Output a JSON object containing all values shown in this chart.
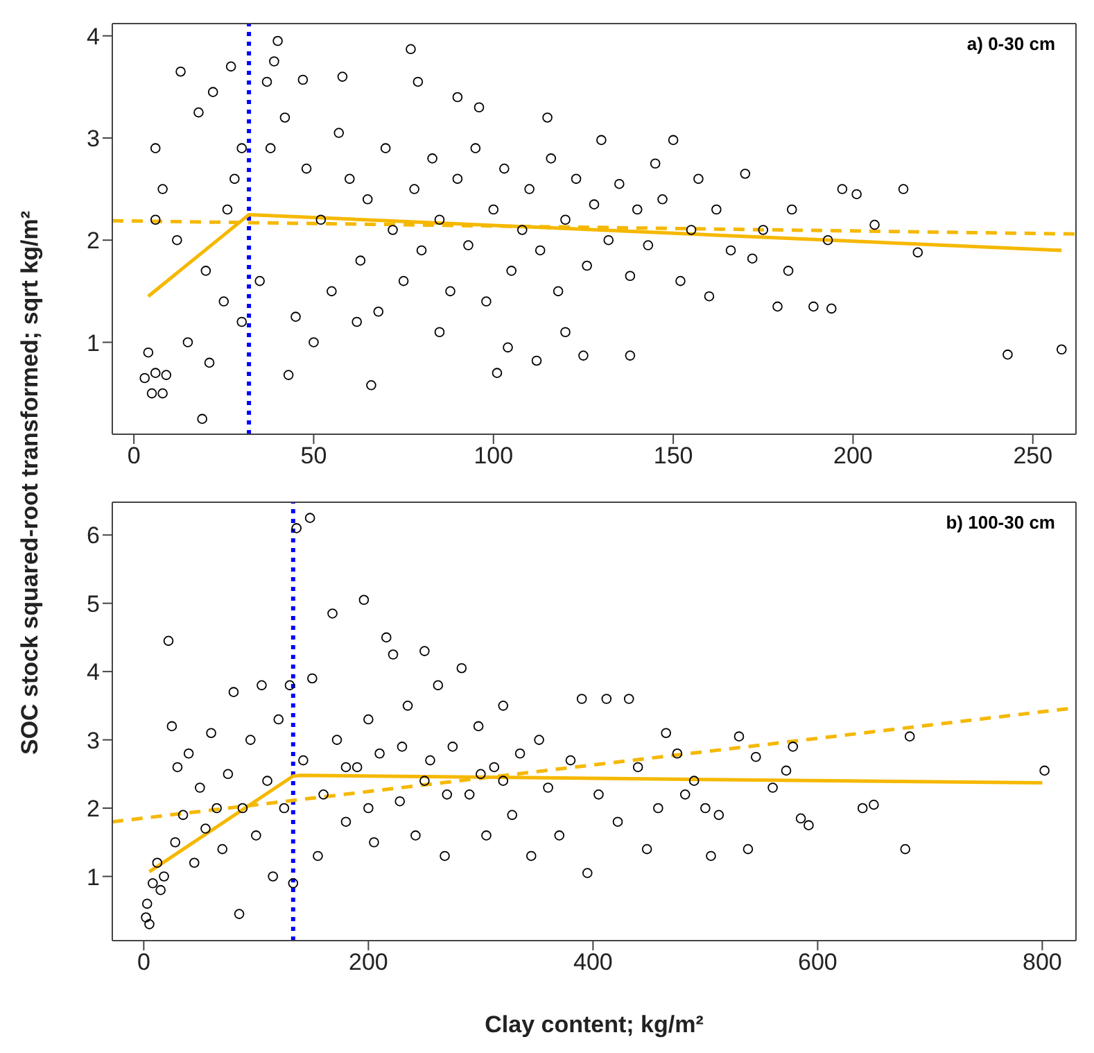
{
  "chart_data": [
    {
      "type": "scatter",
      "title": "a) 0-30 cm",
      "ylabel": "SOC stock squared-root transformed; sqrt kg/m²",
      "xlim": [
        -6,
        262
      ],
      "xticks": [
        0,
        50,
        100,
        150,
        200,
        250
      ],
      "ylim": [
        0.1,
        4.12
      ],
      "yticks": [
        1,
        2,
        3,
        4
      ],
      "ref_lines": [
        {
          "axis": "x",
          "value": 32,
          "color": "#0000ff",
          "line_style": "dotted"
        }
      ],
      "series": [
        {
          "marker": "circle",
          "color": "#000000",
          "x": [
            3,
            4,
            5,
            6,
            8,
            9,
            6,
            6,
            8,
            13,
            19,
            21,
            27,
            37,
            40,
            39,
            43,
            47,
            58,
            66,
            77,
            79,
            90,
            96,
            101,
            112,
            115,
            125,
            138,
            150,
            170,
            179,
            189,
            194,
            197,
            201,
            206,
            214,
            218,
            243,
            258,
            183,
            172,
            160,
            157,
            145,
            130,
            12,
            15,
            18,
            22,
            25,
            28,
            30,
            35,
            38,
            42,
            45,
            48,
            52,
            55,
            57,
            60,
            63,
            65,
            68,
            70,
            72,
            75,
            78,
            80,
            83,
            85,
            88,
            90,
            93,
            95,
            98,
            100,
            103,
            105,
            108,
            110,
            113,
            116,
            118,
            120,
            123,
            126,
            128,
            132,
            135,
            138,
            140,
            143,
            147,
            152,
            155,
            162,
            166,
            175,
            182,
            193,
            50,
            62,
            85,
            104,
            120,
            30,
            26,
            20
          ],
          "values": [
            0.65,
            0.9,
            0.5,
            0.7,
            0.5,
            0.68,
            2.2,
            2.9,
            2.5,
            3.65,
            0.25,
            0.8,
            3.7,
            3.55,
            3.95,
            3.75,
            0.68,
            3.57,
            3.6,
            0.58,
            3.87,
            3.55,
            3.4,
            3.3,
            0.7,
            0.82,
            3.2,
            0.87,
            0.87,
            2.98,
            2.65,
            1.35,
            1.35,
            1.33,
            2.5,
            2.45,
            2.15,
            2.5,
            1.88,
            0.88,
            0.93,
            2.3,
            1.82,
            1.45,
            2.6,
            2.75,
            2.98,
            2.0,
            1.0,
            3.25,
            3.45,
            1.4,
            2.6,
            1.2,
            1.6,
            2.9,
            3.2,
            1.25,
            2.7,
            2.2,
            1.5,
            3.05,
            2.6,
            1.8,
            2.4,
            1.3,
            2.9,
            2.1,
            1.6,
            2.5,
            1.9,
            2.8,
            2.2,
            1.5,
            2.6,
            1.95,
            2.9,
            1.4,
            2.3,
            2.7,
            1.7,
            2.1,
            2.5,
            1.9,
            2.8,
            1.5,
            2.2,
            2.6,
            1.75,
            2.35,
            2.0,
            2.55,
            1.65,
            2.3,
            1.95,
            2.4,
            1.6,
            2.1,
            2.3,
            1.9,
            2.1,
            1.7,
            2.0,
            1.0,
            1.2,
            1.1,
            0.95,
            1.1,
            2.9,
            2.3,
            1.7
          ]
        },
        {
          "type": "line",
          "color": "#f5b800",
          "line_style": "solid",
          "x": [
            4,
            32,
            258
          ],
          "values": [
            1.45,
            2.25,
            1.9
          ]
        },
        {
          "type": "line",
          "color": "#f5b800",
          "line_style": "dashed",
          "x": [
            -6,
            262
          ],
          "values": [
            2.19,
            2.06
          ]
        }
      ]
    },
    {
      "type": "scatter",
      "title": "b) 100-30 cm",
      "xlabel": "Clay content; kg/m²",
      "xlim": [
        -28,
        830
      ],
      "xticks": [
        0,
        200,
        400,
        600,
        800
      ],
      "ylim": [
        0.06,
        6.48
      ],
      "yticks": [
        1,
        2,
        3,
        4,
        5,
        6
      ],
      "ref_lines": [
        {
          "axis": "x",
          "value": 133,
          "color": "#0000ff",
          "line_style": "dotted"
        }
      ],
      "series": [
        {
          "marker": "circle",
          "color": "#000000",
          "x": [
            2,
            3,
            5,
            8,
            12,
            15,
            18,
            22,
            25,
            28,
            30,
            35,
            40,
            45,
            50,
            55,
            60,
            65,
            70,
            75,
            80,
            85,
            88,
            95,
            100,
            105,
            110,
            115,
            120,
            125,
            130,
            133,
            136,
            148,
            142,
            150,
            155,
            160,
            168,
            172,
            180,
            190,
            196,
            200,
            205,
            210,
            216,
            222,
            228,
            235,
            242,
            250,
            255,
            262,
            268,
            275,
            283,
            290,
            298,
            305,
            312,
            320,
            328,
            335,
            345,
            352,
            360,
            370,
            380,
            390,
            395,
            405,
            412,
            422,
            432,
            440,
            448,
            458,
            465,
            475,
            482,
            490,
            500,
            505,
            512,
            530,
            538,
            545,
            560,
            572,
            578,
            585,
            592,
            640,
            650,
            678,
            682,
            802,
            250,
            300,
            200,
            180,
            230,
            270,
            320
          ],
          "values": [
            0.4,
            0.6,
            0.3,
            0.9,
            1.2,
            0.8,
            1.0,
            4.45,
            3.2,
            1.5,
            2.6,
            1.9,
            2.8,
            1.2,
            2.3,
            1.7,
            3.1,
            2.0,
            1.4,
            2.5,
            3.7,
            0.45,
            2.0,
            3.0,
            1.6,
            3.8,
            2.4,
            1.0,
            3.3,
            2.0,
            3.8,
            0.9,
            6.1,
            6.25,
            2.7,
            3.9,
            1.3,
            2.2,
            4.85,
            3.0,
            1.8,
            2.6,
            5.05,
            3.3,
            1.5,
            2.8,
            4.5,
            4.25,
            2.1,
            3.5,
            1.6,
            4.3,
            2.7,
            3.8,
            1.3,
            2.9,
            4.05,
            2.2,
            3.2,
            1.6,
            2.6,
            3.5,
            1.9,
            2.8,
            1.3,
            3.0,
            2.3,
            1.6,
            2.7,
            3.6,
            1.05,
            2.2,
            3.6,
            1.8,
            3.6,
            2.6,
            1.4,
            2.0,
            3.1,
            2.8,
            2.2,
            2.4,
            2.0,
            1.3,
            1.9,
            3.05,
            1.4,
            2.75,
            2.3,
            2.55,
            2.9,
            1.85,
            1.75,
            2.0,
            2.05,
            1.4,
            3.05,
            2.55,
            2.4,
            2.5,
            2.0,
            2.6,
            2.9,
            2.2,
            2.4
          ]
        },
        {
          "type": "line",
          "color": "#f5b800",
          "line_style": "solid",
          "x": [
            5,
            133,
            140,
            800
          ],
          "values": [
            1.07,
            2.47,
            2.48,
            2.37
          ]
        },
        {
          "type": "line",
          "color": "#f5b800",
          "line_style": "dashed",
          "x": [
            -28,
            830
          ],
          "values": [
            1.8,
            3.47
          ]
        }
      ]
    }
  ]
}
